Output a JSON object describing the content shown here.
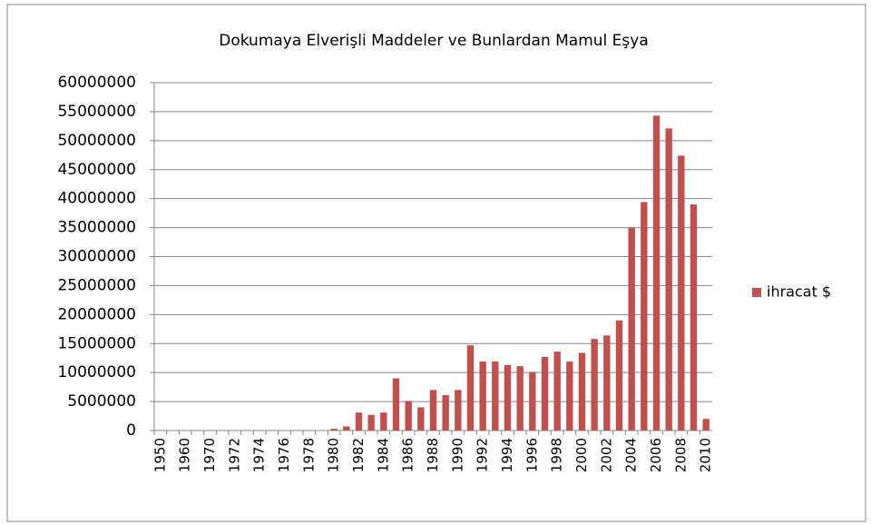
{
  "chart_data": {
    "type": "bar",
    "title": "Dokumaya Elverişli Maddeler ve Bunlardan Mamul Eşya",
    "categories": [
      "1950",
      null,
      "1960",
      null,
      "1970",
      null,
      "1972",
      null,
      "1974",
      null,
      "1976",
      null,
      "1978",
      null,
      "1980",
      null,
      "1982",
      null,
      "1984",
      null,
      "1986",
      null,
      "1988",
      null,
      "1990",
      null,
      "1992",
      null,
      "1994",
      null,
      "1996",
      null,
      "1998",
      null,
      "2000",
      null,
      "2002",
      null,
      "2004",
      null,
      "2006",
      null,
      "2008",
      null,
      "2010"
    ],
    "series": [
      {
        "name": "ihracat $",
        "color": "#c0504d",
        "values": [
          0,
          0,
          0,
          0,
          0,
          0,
          0,
          0,
          0,
          0,
          0,
          0,
          0,
          0,
          300000,
          700000,
          3100000,
          2700000,
          3100000,
          9000000,
          5100000,
          4000000,
          7000000,
          6100000,
          7000000,
          14700000,
          11900000,
          11900000,
          11300000,
          11100000,
          10100000,
          12700000,
          13600000,
          11900000,
          13400000,
          15800000,
          16400000,
          19000000,
          35000000,
          39400000,
          54300000,
          52100000,
          47400000,
          39000000,
          2000000
        ]
      }
    ],
    "ylim": [
      0,
      60000000
    ],
    "yticks": [
      0,
      5000000,
      10000000,
      15000000,
      20000000,
      25000000,
      30000000,
      35000000,
      40000000,
      45000000,
      50000000,
      55000000,
      60000000
    ],
    "grid": true,
    "legend": "right"
  }
}
